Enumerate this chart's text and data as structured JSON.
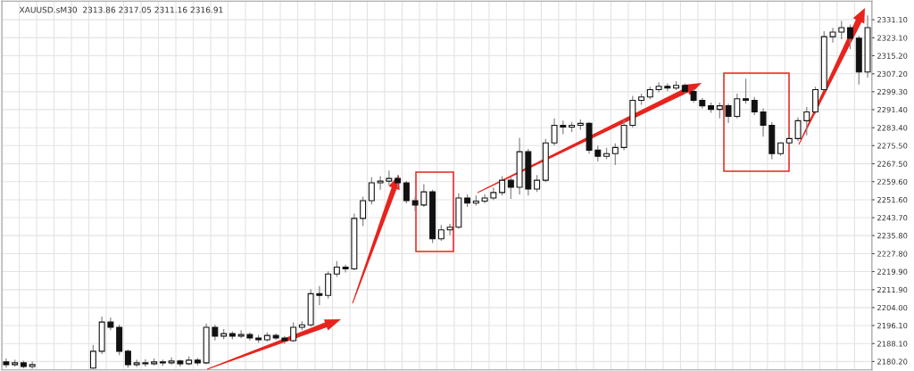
{
  "chart_data": {
    "type": "candlestick",
    "title": "XAUUSD.sM30  2313.86 2317.05 2311.16 2316.91",
    "categories": [
      null,
      null,
      null,
      null,
      null,
      null,
      null,
      null,
      null,
      null,
      null,
      null,
      null,
      null,
      null,
      null,
      null,
      null,
      null,
      null,
      null,
      null,
      null,
      null,
      null,
      null,
      null,
      null,
      null,
      null,
      null,
      null,
      null,
      null,
      null,
      null,
      null,
      null,
      null,
      null,
      null,
      null,
      null,
      null,
      null,
      null,
      null,
      null,
      null,
      null,
      null,
      null,
      null,
      null,
      null,
      null,
      null,
      null,
      null,
      null,
      null,
      null,
      null,
      null,
      null,
      null,
      null,
      null,
      null,
      null,
      null,
      null,
      null,
      null,
      null,
      null,
      null,
      null,
      null,
      null,
      null,
      null,
      null,
      null,
      null,
      null,
      null,
      null,
      null,
      null,
      null,
      null,
      null,
      null,
      null,
      null,
      null,
      null,
      null,
      null
    ],
    "ohlc": [
      [
        2180.0,
        2181.5,
        2177.5,
        2178.8
      ],
      [
        2178.8,
        2181.0,
        2178.0,
        2179.6
      ],
      [
        2179.6,
        2180.5,
        2177.2,
        2178.0
      ],
      [
        2178.0,
        2180.2,
        2177.0,
        2178.8
      ],
      null,
      null,
      null,
      null,
      null,
      null,
      [
        2177.3,
        2187.5,
        2177.0,
        2184.7
      ],
      [
        2184.7,
        2200.0,
        2183.5,
        2197.6
      ],
      [
        2197.6,
        2199.5,
        2194.0,
        2195.3
      ],
      [
        2195.3,
        2196.5,
        2183.0,
        2184.7
      ],
      [
        2184.7,
        2185.5,
        2177.5,
        2178.8
      ],
      [
        2178.8,
        2181.0,
        2177.8,
        2179.6
      ],
      [
        2179.6,
        2181.2,
        2178.0,
        2179.2
      ],
      [
        2179.2,
        2181.5,
        2178.5,
        2180.0
      ],
      [
        2180.0,
        2181.0,
        2178.3,
        2179.6
      ],
      [
        2179.6,
        2182.0,
        2178.8,
        2180.4
      ],
      [
        2180.4,
        2181.0,
        2178.0,
        2179.2
      ],
      [
        2179.2,
        2182.5,
        2178.6,
        2180.8
      ],
      [
        2180.8,
        2181.8,
        2178.5,
        2179.6
      ],
      [
        2179.6,
        2197.0,
        2179.0,
        2195.3
      ],
      [
        2195.3,
        2196.5,
        2189.5,
        2191.4
      ],
      [
        2191.4,
        2194.5,
        2190.0,
        2192.5
      ],
      [
        2192.5,
        2193.5,
        2190.0,
        2191.4
      ],
      [
        2191.4,
        2194.0,
        2190.5,
        2192.1
      ],
      [
        2192.1,
        2193.0,
        2189.5,
        2190.6
      ],
      [
        2190.6,
        2192.0,
        2188.5,
        2189.8
      ],
      [
        2189.8,
        2193.0,
        2189.0,
        2191.7
      ],
      [
        2191.7,
        2192.5,
        2189.8,
        2190.6
      ],
      [
        2190.6,
        2191.5,
        2188.0,
        2189.4
      ],
      [
        2189.4,
        2197.5,
        2188.8,
        2195.3
      ],
      [
        2195.3,
        2198.0,
        2194.0,
        2196.4
      ],
      [
        2196.4,
        2212.0,
        2195.5,
        2210.1
      ],
      [
        2210.1,
        2213.5,
        2205.0,
        2209.4
      ],
      [
        2209.4,
        2220.0,
        2208.0,
        2218.8
      ],
      [
        2218.8,
        2224.5,
        2217.5,
        2221.9
      ],
      [
        2221.9,
        2223.0,
        2219.5,
        2221.1
      ],
      [
        2221.1,
        2245.5,
        2220.5,
        2243.4
      ],
      [
        2243.4,
        2253.0,
        2240.0,
        2251.2
      ],
      [
        2251.2,
        2261.5,
        2249.5,
        2259.1
      ],
      [
        2259.1,
        2262.0,
        2256.0,
        2259.8
      ],
      [
        2259.8,
        2264.5,
        2258.0,
        2261.0
      ],
      [
        2261.0,
        2262.5,
        2257.0,
        2259.1
      ],
      [
        2259.1,
        2260.0,
        2250.0,
        2251.2
      ],
      [
        2251.2,
        2253.0,
        2246.5,
        2249.3
      ],
      [
        2249.3,
        2258.5,
        2248.5,
        2255.1
      ],
      [
        2255.1,
        2256.0,
        2232.5,
        2234.4
      ],
      [
        2234.4,
        2240.5,
        2233.5,
        2238.3
      ],
      [
        2238.3,
        2241.0,
        2236.0,
        2239.5
      ],
      [
        2239.5,
        2254.5,
        2238.8,
        2252.4
      ],
      [
        2252.4,
        2254.0,
        2248.5,
        2250.1
      ],
      [
        2250.1,
        2253.5,
        2249.0,
        2251.0
      ],
      [
        2251.0,
        2254.0,
        2250.0,
        2252.4
      ],
      [
        2252.4,
        2257.0,
        2251.5,
        2254.8
      ],
      [
        2254.8,
        2262.0,
        2253.5,
        2260.2
      ],
      [
        2260.2,
        2261.5,
        2252.0,
        2257.1
      ],
      [
        2257.1,
        2279.0,
        2254.0,
        2272.8
      ],
      [
        2272.8,
        2274.0,
        2253.5,
        2256.3
      ],
      [
        2256.3,
        2262.5,
        2255.0,
        2260.2
      ],
      [
        2260.2,
        2278.5,
        2259.5,
        2276.7
      ],
      [
        2276.7,
        2287.5,
        2275.5,
        2284.5
      ],
      [
        2284.5,
        2286.5,
        2280.5,
        2283.7
      ],
      [
        2283.7,
        2286.0,
        2281.5,
        2284.5
      ],
      [
        2284.5,
        2287.0,
        2282.5,
        2285.3
      ],
      [
        2285.3,
        2286.0,
        2272.0,
        2273.5
      ],
      [
        2273.5,
        2275.5,
        2268.5,
        2270.8
      ],
      [
        2270.8,
        2274.5,
        2269.5,
        2272.0
      ],
      [
        2272.0,
        2276.5,
        2267.0,
        2274.7
      ],
      [
        2274.7,
        2287.0,
        2273.5,
        2284.5
      ],
      [
        2284.5,
        2297.5,
        2283.5,
        2295.5
      ],
      [
        2295.5,
        2298.5,
        2293.5,
        2297.0
      ],
      [
        2297.0,
        2301.5,
        2296.0,
        2300.2
      ],
      [
        2300.2,
        2303.5,
        2299.0,
        2301.7
      ],
      [
        2301.7,
        2303.0,
        2299.5,
        2300.9
      ],
      [
        2300.9,
        2304.0,
        2300.0,
        2302.1
      ],
      [
        2302.1,
        2303.0,
        2298.5,
        2299.4
      ],
      [
        2299.4,
        2300.5,
        2294.5,
        2295.5
      ],
      [
        2295.5,
        2296.5,
        2292.0,
        2293.1
      ],
      [
        2293.1,
        2294.5,
        2290.0,
        2291.5
      ],
      [
        2291.5,
        2294.5,
        2287.5,
        2293.1
      ],
      [
        2293.1,
        2294.0,
        2285.5,
        2288.4
      ],
      [
        2288.4,
        2298.5,
        2287.5,
        2296.2
      ],
      [
        2296.2,
        2305.0,
        2294.0,
        2295.5
      ],
      [
        2295.5,
        2297.0,
        2289.0,
        2290.4
      ],
      [
        2290.4,
        2292.0,
        2279.5,
        2284.5
      ],
      [
        2284.5,
        2286.0,
        2269.5,
        2272.0
      ],
      [
        2272.0,
        2277.0,
        2271.0,
        2276.7
      ],
      [
        2276.7,
        2280.5,
        2275.5,
        2278.6
      ],
      [
        2278.6,
        2288.0,
        2277.5,
        2286.5
      ],
      [
        2286.5,
        2292.5,
        2280.0,
        2290.4
      ],
      [
        2290.4,
        2301.5,
        2289.5,
        2300.2
      ],
      [
        2300.2,
        2326.0,
        2299.5,
        2323.6
      ],
      [
        2323.6,
        2327.5,
        2321.0,
        2325.6
      ],
      [
        2325.6,
        2330.5,
        2322.5,
        2327.6
      ],
      [
        2327.6,
        2329.0,
        2318.0,
        2322.9
      ],
      [
        2322.9,
        2324.0,
        2302.5,
        2308.0
      ],
      [
        2308.0,
        2333.0,
        2305.5,
        2327.6
      ]
    ],
    "ylim": [
      2176.5,
      2339.3
    ],
    "yticks": [
      {
        "value": 2331.1,
        "label": "2331.10"
      },
      {
        "value": 2323.1,
        "label": "2323.10"
      },
      {
        "value": 2315.2,
        "label": "2315.20"
      },
      {
        "value": 2307.2,
        "label": "2307.20"
      },
      {
        "value": 2299.3,
        "label": "2299.30"
      },
      {
        "value": 2291.4,
        "label": "2291.40"
      },
      {
        "value": 2283.4,
        "label": "2283.40"
      },
      {
        "value": 2275.5,
        "label": "2275.50"
      },
      {
        "value": 2267.5,
        "label": "2267.50"
      },
      {
        "value": 2259.6,
        "label": "2259.60"
      },
      {
        "value": 2251.6,
        "label": "2251.60"
      },
      {
        "value": 2243.7,
        "label": "2243.70"
      },
      {
        "value": 2235.8,
        "label": "2235.80"
      },
      {
        "value": 2227.8,
        "label": "2227.80"
      },
      {
        "value": 2219.9,
        "label": "2219.90"
      },
      {
        "value": 2211.9,
        "label": "2211.90"
      },
      {
        "value": 2204.0,
        "label": "2204.00"
      },
      {
        "value": 2196.1,
        "label": "2196.10"
      },
      {
        "value": 2188.1,
        "label": "2188.10"
      },
      {
        "value": 2180.2,
        "label": "2180.20"
      }
    ],
    "grid": true
  }
}
